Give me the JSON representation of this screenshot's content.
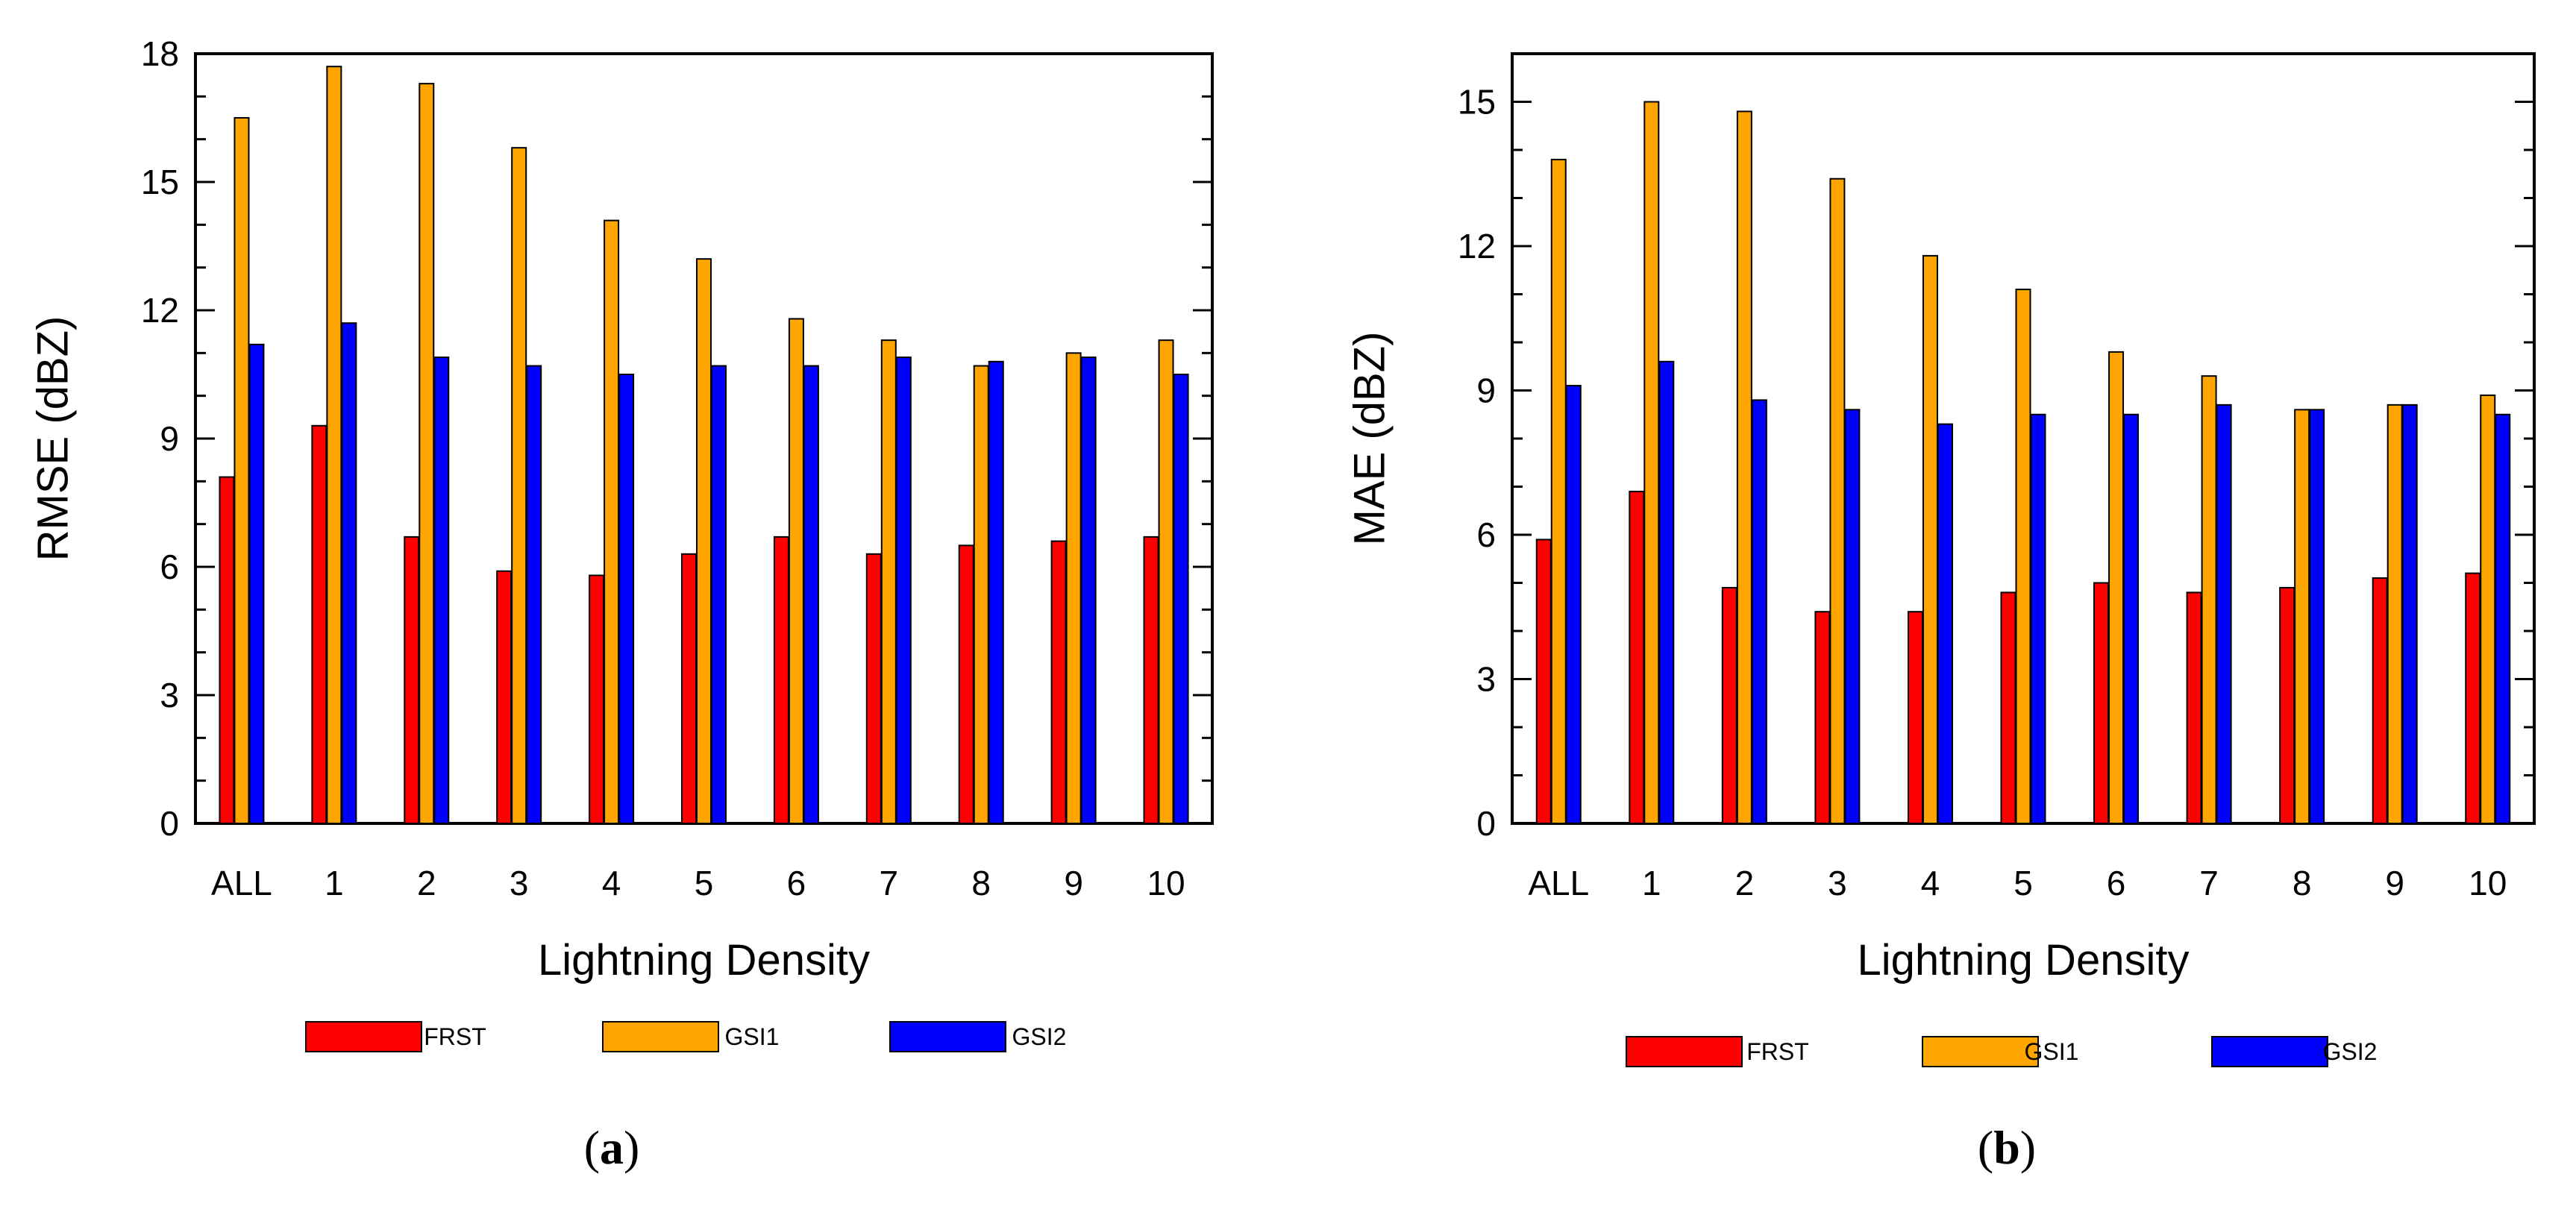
{
  "chart_data": [
    {
      "type": "bar",
      "panel": "a",
      "caption": {
        "open": "(",
        "letter": "a",
        "close": ")"
      },
      "xlabel": "Lightning Density",
      "ylabel": "RMSE (dBZ)",
      "ylim": [
        0,
        18
      ],
      "yticks": [
        "0",
        "3",
        "6",
        "9",
        "12",
        "15",
        "18"
      ],
      "categories": [
        "ALL",
        "1",
        "2",
        "3",
        "4",
        "5",
        "6",
        "7",
        "8",
        "9",
        "10"
      ],
      "series": [
        {
          "name": "FRST",
          "color": "#ff0000",
          "values": [
            8.1,
            9.3,
            6.7,
            5.9,
            5.8,
            6.3,
            6.7,
            6.3,
            6.5,
            6.6,
            6.7
          ]
        },
        {
          "name": "GSI1",
          "color": "#ffa500",
          "values": [
            16.5,
            17.7,
            17.3,
            15.8,
            14.1,
            13.2,
            11.8,
            11.3,
            10.7,
            11.0,
            11.3
          ]
        },
        {
          "name": "GSI2",
          "color": "#0000ff",
          "values": [
            11.2,
            11.7,
            10.9,
            10.7,
            10.5,
            10.7,
            10.7,
            10.9,
            10.8,
            10.9,
            10.5
          ]
        }
      ]
    },
    {
      "type": "bar",
      "panel": "b",
      "caption": {
        "open": "(",
        "letter": "b",
        "close": ")"
      },
      "xlabel": "Lightning Density",
      "ylabel": "MAE (dBZ)",
      "ylim": [
        0,
        16
      ],
      "yticks": [
        "0",
        "3",
        "6",
        "9",
        "12",
        "15"
      ],
      "categories": [
        "ALL",
        "1",
        "2",
        "3",
        "4",
        "5",
        "6",
        "7",
        "8",
        "9",
        "10"
      ],
      "series": [
        {
          "name": "FRST",
          "color": "#ff0000",
          "values": [
            5.9,
            6.9,
            4.9,
            4.4,
            4.4,
            4.8,
            5.0,
            4.8,
            4.9,
            5.1,
            5.2
          ]
        },
        {
          "name": "GSI1",
          "color": "#ffa500",
          "values": [
            13.8,
            15.0,
            14.8,
            13.4,
            11.8,
            11.1,
            9.8,
            9.3,
            8.6,
            8.7,
            8.9
          ]
        },
        {
          "name": "GSI2",
          "color": "#0000ff",
          "values": [
            9.1,
            9.6,
            8.8,
            8.6,
            8.3,
            8.5,
            8.5,
            8.7,
            8.6,
            8.7,
            8.5
          ]
        }
      ]
    }
  ]
}
